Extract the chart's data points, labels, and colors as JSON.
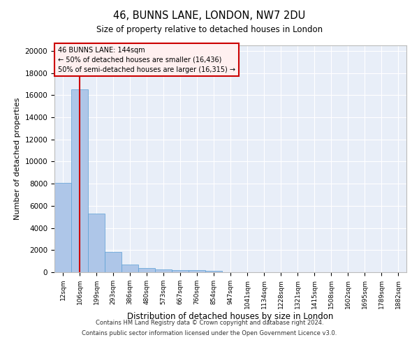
{
  "title_line1": "46, BUNNS LANE, LONDON, NW7 2DU",
  "title_line2": "Size of property relative to detached houses in London",
  "xlabel": "Distribution of detached houses by size in London",
  "ylabel": "Number of detached properties",
  "categories": [
    "12sqm",
    "106sqm",
    "199sqm",
    "293sqm",
    "386sqm",
    "480sqm",
    "573sqm",
    "667sqm",
    "760sqm",
    "854sqm",
    "947sqm",
    "1041sqm",
    "1134sqm",
    "1228sqm",
    "1321sqm",
    "1415sqm",
    "1508sqm",
    "1602sqm",
    "1695sqm",
    "1789sqm",
    "1882sqm"
  ],
  "values": [
    8100,
    16500,
    5300,
    1850,
    700,
    350,
    270,
    210,
    170,
    130,
    0,
    0,
    0,
    0,
    0,
    0,
    0,
    0,
    0,
    0,
    0
  ],
  "bar_color": "#aec6e8",
  "bar_edge_color": "#5a9fd4",
  "vline_x": 1.0,
  "vline_color": "#cc0000",
  "annotation_title": "46 BUNNS LANE: 144sqm",
  "annotation_line1": "← 50% of detached houses are smaller (16,436)",
  "annotation_line2": "50% of semi-detached houses are larger (16,315) →",
  "annotation_box_facecolor": "#fff0f0",
  "annotation_box_edgecolor": "#cc0000",
  "ylim": [
    0,
    20500
  ],
  "yticks": [
    0,
    2000,
    4000,
    6000,
    8000,
    10000,
    12000,
    14000,
    16000,
    18000,
    20000
  ],
  "background_color": "#e8eef8",
  "grid_color": "#ffffff",
  "footnote_line1": "Contains HM Land Registry data © Crown copyright and database right 2024.",
  "footnote_line2": "Contains public sector information licensed under the Open Government Licence v3.0."
}
